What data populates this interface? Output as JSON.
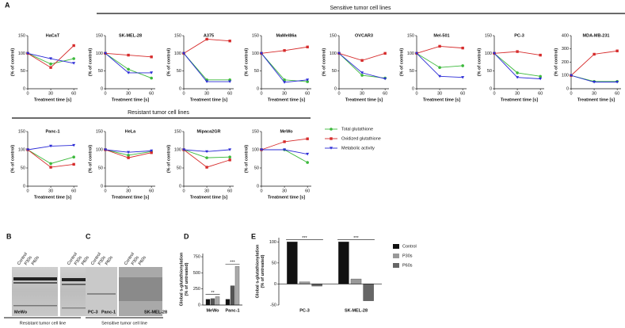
{
  "panel_letters": [
    "A",
    "B",
    "C",
    "D",
    "E"
  ],
  "headers": [
    "Sensitive tumor cell lines",
    "Resistant tumor cell lines"
  ],
  "line_legend": [
    {
      "name": "Total glutathione",
      "color": "#3cb93c"
    },
    {
      "name": "Oxidized glutathione",
      "color": "#d62b2b"
    },
    {
      "name": "Metabolic activity",
      "color": "#2a2ad6"
    }
  ],
  "blots": [
    {
      "lanes": [
        "Control",
        "P30s",
        "P60s"
      ],
      "cell_lines": [
        "MeWo",
        "Panc-1"
      ],
      "caption": "Resistant tumor cell line"
    },
    {
      "lanes": [
        "Control",
        "P30s",
        "P60s"
      ],
      "cell_lines": [
        "PC-3",
        "SK-MEL-28"
      ],
      "caption": "Sensitive tumor cell line"
    }
  ],
  "chart_data": [
    {
      "type": "line",
      "title": "HaCaT",
      "xlabel": "Treatment time [s]",
      "ylabel": "(% of control)",
      "x": [
        0,
        30,
        60
      ],
      "xlim": [
        0,
        65
      ],
      "xticks": [
        0,
        30,
        60
      ],
      "ylim": [
        0,
        150
      ],
      "yticks": [
        0,
        50,
        100,
        150
      ],
      "series": [
        {
          "values": [
            100,
            70,
            85
          ]
        },
        {
          "values": [
            100,
            60,
            122
          ]
        },
        {
          "values": [
            100,
            85,
            72
          ]
        }
      ]
    },
    {
      "type": "line",
      "title": "SK-MEL-28",
      "xlabel": "Treatment time [s]",
      "ylabel": "(% of control)",
      "x": [
        0,
        30,
        60
      ],
      "xlim": [
        0,
        65
      ],
      "xticks": [
        0,
        30,
        60
      ],
      "ylim": [
        0,
        150
      ],
      "yticks": [
        0,
        50,
        100,
        150
      ],
      "series": [
        {
          "values": [
            100,
            55,
            30
          ]
        },
        {
          "values": [
            100,
            95,
            90
          ]
        },
        {
          "values": [
            100,
            45,
            45
          ]
        }
      ]
    },
    {
      "type": "line",
      "title": "A375",
      "xlabel": "Treatment time [s]",
      "ylabel": "(% of control)",
      "x": [
        0,
        30,
        60
      ],
      "xlim": [
        0,
        65
      ],
      "xticks": [
        0,
        30,
        60
      ],
      "ylim": [
        0,
        150
      ],
      "yticks": [
        0,
        50,
        100,
        150
      ],
      "series": [
        {
          "values": [
            100,
            25,
            25
          ]
        },
        {
          "values": [
            100,
            140,
            135
          ]
        },
        {
          "values": [
            100,
            20,
            20
          ]
        }
      ]
    },
    {
      "type": "line",
      "title": "MaMel86a",
      "xlabel": "Treatment time [s]",
      "ylabel": "(% of control)",
      "x": [
        0,
        30,
        60
      ],
      "xlim": [
        0,
        65
      ],
      "xticks": [
        0,
        30,
        60
      ],
      "ylim": [
        0,
        150
      ],
      "yticks": [
        0,
        50,
        100,
        150
      ],
      "series": [
        {
          "values": [
            100,
            25,
            20
          ]
        },
        {
          "values": [
            100,
            108,
            118
          ]
        },
        {
          "values": [
            100,
            18,
            25
          ]
        }
      ]
    },
    {
      "type": "line",
      "title": "OVCAR3",
      "xlabel": "Treatment time [s]",
      "ylabel": "(% of control)",
      "x": [
        0,
        30,
        60
      ],
      "xlim": [
        0,
        65
      ],
      "xticks": [
        0,
        30,
        60
      ],
      "ylim": [
        0,
        150
      ],
      "yticks": [
        0,
        50,
        100,
        150
      ],
      "series": [
        {
          "values": [
            100,
            38,
            30
          ]
        },
        {
          "values": [
            100,
            80,
            100
          ]
        },
        {
          "values": [
            100,
            45,
            28
          ]
        }
      ]
    },
    {
      "type": "line",
      "title": "Mel-501",
      "xlabel": "Treatment time [s]",
      "ylabel": "(% of control)",
      "x": [
        0,
        30,
        60
      ],
      "xlim": [
        0,
        65
      ],
      "xticks": [
        0,
        30,
        60
      ],
      "ylim": [
        0,
        150
      ],
      "yticks": [
        0,
        50,
        100,
        150
      ],
      "series": [
        {
          "values": [
            100,
            60,
            65
          ]
        },
        {
          "values": [
            100,
            120,
            115
          ]
        },
        {
          "values": [
            100,
            35,
            32
          ]
        }
      ]
    },
    {
      "type": "line",
      "title": "PC-3",
      "xlabel": "Treatment time [s]",
      "ylabel": "(% of control)",
      "x": [
        0,
        30,
        60
      ],
      "xlim": [
        0,
        65
      ],
      "xticks": [
        0,
        30,
        60
      ],
      "ylim": [
        0,
        150
      ],
      "yticks": [
        0,
        50,
        100,
        150
      ],
      "series": [
        {
          "values": [
            100,
            45,
            35
          ]
        },
        {
          "values": [
            100,
            105,
            95
          ]
        },
        {
          "values": [
            100,
            32,
            28
          ]
        }
      ]
    },
    {
      "type": "line",
      "title": "MDA-MB-231",
      "xlabel": "Treatment time [s]",
      "ylabel": "(% of control)",
      "x": [
        0,
        30,
        60
      ],
      "xlim": [
        0,
        65
      ],
      "xticks": [
        0,
        30,
        60
      ],
      "ylim": [
        0,
        400
      ],
      "yticks": [
        0,
        100,
        200,
        300,
        400
      ],
      "series": [
        {
          "values": [
            100,
            55,
            55
          ]
        },
        {
          "values": [
            100,
            260,
            285
          ]
        },
        {
          "values": [
            100,
            50,
            50
          ]
        }
      ]
    },
    {
      "type": "line",
      "title": "Panc-1",
      "xlabel": "Treatment time [s]",
      "ylabel": "(% of control)",
      "x": [
        0,
        30,
        60
      ],
      "xlim": [
        0,
        65
      ],
      "xticks": [
        0,
        30,
        60
      ],
      "ylim": [
        0,
        150
      ],
      "yticks": [
        0,
        50,
        100,
        150
      ],
      "series": [
        {
          "values": [
            100,
            62,
            80
          ]
        },
        {
          "values": [
            100,
            52,
            60
          ]
        },
        {
          "values": [
            100,
            110,
            112
          ]
        }
      ]
    },
    {
      "type": "line",
      "title": "HeLa",
      "xlabel": "Treatment time [s]",
      "ylabel": "(% of control)",
      "x": [
        0,
        30,
        60
      ],
      "xlim": [
        0,
        65
      ],
      "xticks": [
        0,
        30,
        60
      ],
      "ylim": [
        0,
        150
      ],
      "yticks": [
        0,
        50,
        100,
        150
      ],
      "series": [
        {
          "values": [
            100,
            85,
            95
          ]
        },
        {
          "values": [
            100,
            78,
            92
          ]
        },
        {
          "values": [
            100,
            93,
            97
          ]
        }
      ]
    },
    {
      "type": "line",
      "title": "Mipaca2GR",
      "xlabel": "Treatment time [s]",
      "ylabel": "(% of control)",
      "x": [
        0,
        30,
        60
      ],
      "xlim": [
        0,
        65
      ],
      "xticks": [
        0,
        30,
        60
      ],
      "ylim": [
        0,
        150
      ],
      "yticks": [
        0,
        50,
        100,
        150
      ],
      "series": [
        {
          "values": [
            100,
            78,
            80
          ]
        },
        {
          "values": [
            100,
            52,
            72
          ]
        },
        {
          "values": [
            100,
            95,
            100
          ]
        }
      ]
    },
    {
      "type": "line",
      "title": "MeWo",
      "xlabel": "Treatment time [s]",
      "ylabel": "(% of control)",
      "x": [
        0,
        30,
        60
      ],
      "xlim": [
        0,
        65
      ],
      "xticks": [
        0,
        30,
        60
      ],
      "ylim": [
        0,
        150
      ],
      "yticks": [
        0,
        50,
        100,
        150
      ],
      "series": [
        {
          "values": [
            100,
            100,
            65
          ]
        },
        {
          "values": [
            100,
            122,
            130
          ]
        },
        {
          "values": [
            100,
            100,
            88
          ]
        }
      ]
    },
    {
      "type": "bar",
      "ylabel": [
        "Global s-glutathionylation",
        "(% of untreated)"
      ],
      "categories": [
        "MeWo",
        "Panc-1"
      ],
      "ylim": [
        0,
        800
      ],
      "yticks": [
        0,
        250,
        500,
        750
      ],
      "series": [
        {
          "color": "#111111",
          "values": [
            90,
            90
          ]
        },
        {
          "color": "#555555",
          "values": [
            100,
            300
          ]
        },
        {
          "color": "#aaaaaa",
          "values": [
            130,
            600
          ]
        }
      ],
      "annotations": [
        "**",
        "***"
      ]
    },
    {
      "type": "bar",
      "ylabel": [
        "Global s-glutathionylation",
        "(% of untreated)"
      ],
      "categories": [
        "PC-3",
        "SK-MEL-28"
      ],
      "ylim": [
        -50,
        110
      ],
      "yticks": [
        -50,
        0,
        50,
        100
      ],
      "series": [
        {
          "name": "Control",
          "color": "#111111",
          "values": [
            100,
            100
          ]
        },
        {
          "name": "P30s",
          "color": "#999999",
          "values": [
            5,
            12
          ]
        },
        {
          "name": "P60s",
          "color": "#666666",
          "values": [
            -5,
            -40
          ]
        }
      ],
      "annotations": [
        "***",
        "***"
      ]
    }
  ]
}
